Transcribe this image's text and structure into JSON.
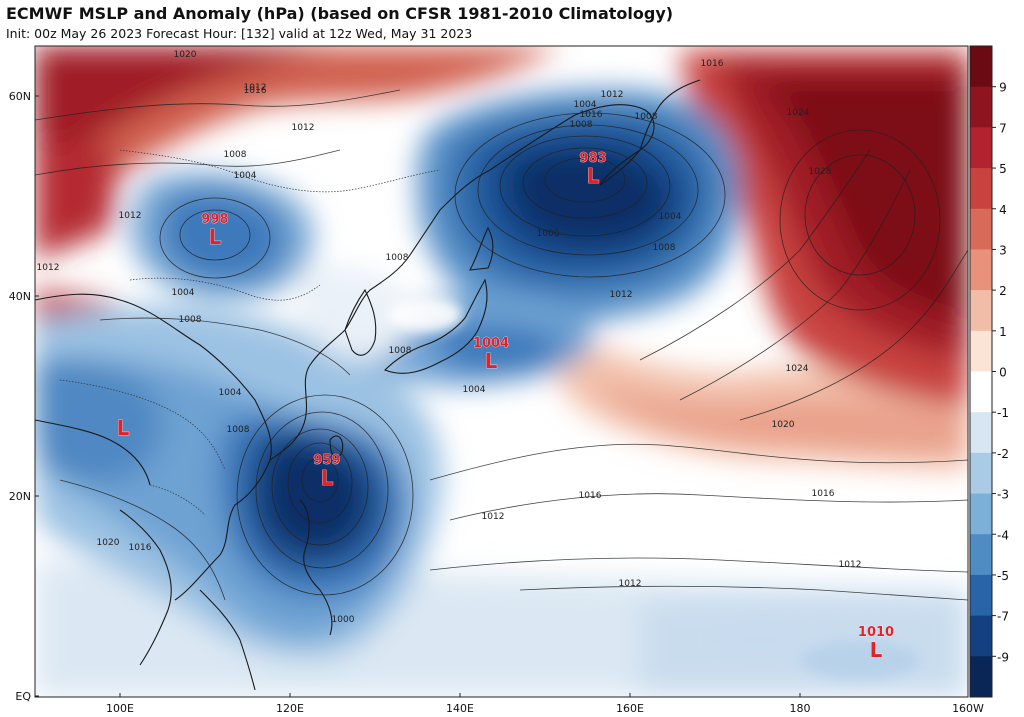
{
  "header": {
    "title": "ECMWF MSLP and Anomaly (hPa) (based on CFSR 1981-2010 Climatology)",
    "subtitle": "Init: 00z May 26 2023   Forecast Hour: [132]   valid at 12z Wed, May 31 2023"
  },
  "axes": {
    "lat_labels": [
      "60N",
      "40N",
      "20N",
      "EQ"
    ],
    "lon_labels": [
      "100E",
      "120E",
      "140E",
      "160E",
      "180",
      "160W"
    ]
  },
  "colorbar": {
    "labels": [
      "9",
      "7",
      "5",
      "4",
      "3",
      "2",
      "1",
      "0",
      "-1",
      "-2",
      "-3",
      "-4",
      "-5",
      "-7",
      "-9"
    ],
    "colors": [
      "#6b0a12",
      "#8e1420",
      "#b22330",
      "#c8433f",
      "#d86a5a",
      "#e8927c",
      "#f2bda8",
      "#fbe3d6",
      "#ffffff",
      "#d7e6f2",
      "#aacbe6",
      "#7db0d9",
      "#4f8cc4",
      "#2a64a8",
      "#143f80",
      "#0a2656"
    ]
  },
  "pressure_centers": [
    {
      "value": "983",
      "symbol": "L"
    },
    {
      "value": "998",
      "symbol": "L"
    },
    {
      "value": "1004",
      "symbol": "L"
    },
    {
      "value": "959",
      "symbol": "L"
    },
    {
      "value": "1010",
      "symbol": "L"
    },
    {
      "value": "",
      "symbol": "L"
    }
  ],
  "isobar_labels": [
    "1020",
    "1016",
    "1012",
    "1008",
    "1004",
    "1000",
    "1024",
    "1028",
    "1016",
    "1012",
    "1008",
    "1004",
    "1008",
    "1012",
    "1016",
    "1020",
    "1024",
    "1016",
    "1012",
    "1012",
    "1008",
    "1004",
    "1004",
    "1008",
    "1012",
    "1012",
    "1016",
    "1008",
    "1004",
    "1012",
    "1008",
    "1004",
    "1000",
    "1020",
    "1016",
    "1012",
    "1008"
  ]
}
